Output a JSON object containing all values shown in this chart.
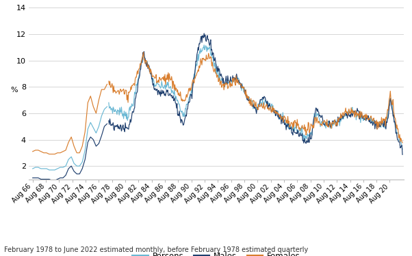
{
  "title": "",
  "ylabel": "%",
  "footnote": "February 1978 to June 2022 estimated monthly, before February 1978 estimated quarterly",
  "legend_labels": [
    "Persons",
    "Males",
    "Females"
  ],
  "colors": {
    "persons": "#6bb8d4",
    "males": "#1f3f6e",
    "females": "#d97e2e"
  },
  "ylim": [
    1.0,
    14.0
  ],
  "yticks": [
    2,
    4,
    6,
    8,
    10,
    12,
    14
  ],
  "grid_color": "#d0d0d0",
  "background_color": "#ffffff",
  "line_width": 0.85,
  "quarterly_dates": [
    1966.58,
    1967.0,
    1967.42,
    1967.83,
    1968.25,
    1968.67,
    1969.08,
    1969.5,
    1969.92,
    1970.33,
    1970.75,
    1971.17,
    1971.58,
    1972.0,
    1972.42,
    1972.83,
    1973.25,
    1973.67,
    1974.08,
    1974.5,
    1974.92,
    1975.33,
    1975.75,
    1976.17,
    1976.58,
    1977.0,
    1977.42,
    1977.83
  ],
  "quarterly_persons": [
    1.8,
    1.9,
    1.9,
    1.8,
    1.8,
    1.8,
    1.7,
    1.7,
    1.7,
    1.8,
    1.9,
    1.9,
    2.0,
    2.5,
    2.7,
    2.2,
    2.0,
    2.0,
    2.3,
    3.2,
    4.8,
    5.3,
    4.9,
    4.5,
    5.0,
    5.8,
    6.3,
    6.5
  ],
  "quarterly_males": [
    1.1,
    1.1,
    1.1,
    1.0,
    1.0,
    1.0,
    1.0,
    0.9,
    0.9,
    1.0,
    1.1,
    1.1,
    1.3,
    1.8,
    2.0,
    1.6,
    1.4,
    1.4,
    1.8,
    2.5,
    3.8,
    4.2,
    4.0,
    3.5,
    3.7,
    4.3,
    5.0,
    5.2
  ],
  "quarterly_females": [
    3.1,
    3.2,
    3.2,
    3.1,
    3.0,
    3.0,
    2.9,
    2.9,
    2.9,
    3.0,
    3.0,
    3.1,
    3.2,
    3.8,
    4.2,
    3.5,
    3.0,
    3.0,
    3.5,
    4.6,
    6.8,
    7.3,
    6.5,
    6.0,
    7.0,
    7.8,
    7.8,
    8.2
  ],
  "xtick_positions": [
    1966.58,
    1968.58,
    1970.58,
    1972.58,
    1974.58,
    1976.58,
    1978.58,
    1980.58,
    1982.58,
    1984.58,
    1986.58,
    1988.58,
    1990.58,
    1992.58,
    1994.58,
    1996.58,
    1998.58,
    2000.58,
    2002.58,
    2004.58,
    2006.58,
    2008.58,
    2010.58,
    2012.58,
    2014.58,
    2016.58,
    2018.58,
    2020.58
  ],
  "xtick_labels": [
    "Aug 66",
    "Aug 68",
    "Aug 70",
    "Aug 72",
    "Aug 74",
    "Aug 76",
    "Aug 78",
    "Aug 80",
    "Aug 82",
    "Aug 84",
    "Aug 86",
    "Aug 88",
    "Aug 90",
    "Aug 92",
    "Aug 94",
    "Aug 96",
    "Aug 98",
    "Aug 00",
    "Aug 02",
    "Aug 04",
    "Aug 06",
    "Aug 08",
    "Aug 10",
    "Aug 12",
    "Aug 14",
    "Aug 16",
    "Aug 18",
    "Aug 20"
  ],
  "monthly_key_points": {
    "t": [
      1978.08,
      1979.0,
      1980.0,
      1981.0,
      1982.0,
      1982.5,
      1983.25,
      1983.75,
      1984.5,
      1985.0,
      1986.0,
      1987.0,
      1988.0,
      1989.0,
      1989.5,
      1990.0,
      1990.75,
      1991.5,
      1992.0,
      1992.5,
      1993.0,
      1993.5,
      1994.0,
      1994.75,
      1995.5,
      1996.5,
      1997.5,
      1998.5,
      1999.5,
      2000.5,
      2001.0,
      2001.5,
      2002.5,
      2003.5,
      2004.5,
      2005.5,
      2006.5,
      2007.0,
      2007.5,
      2008.0,
      2008.75,
      2009.25,
      2009.75,
      2010.5,
      2011.5,
      2012.5,
      2013.5,
      2014.5,
      2015.5,
      2016.5,
      2017.5,
      2018.5,
      2019.5,
      2020.0,
      2020.42,
      2020.67,
      2021.0,
      2021.5,
      2022.0,
      2022.5
    ],
    "persons": [
      6.5,
      6.2,
      6.1,
      5.8,
      7.2,
      8.5,
      10.4,
      9.9,
      8.9,
      8.2,
      8.0,
      8.1,
      7.5,
      6.2,
      6.0,
      6.9,
      8.0,
      10.0,
      10.8,
      11.0,
      10.9,
      10.8,
      9.7,
      8.9,
      8.2,
      8.4,
      8.6,
      7.8,
      6.9,
      6.3,
      6.8,
      7.0,
      6.5,
      6.0,
      5.5,
      5.0,
      4.9,
      4.6,
      4.4,
      4.2,
      4.5,
      5.9,
      5.8,
      5.2,
      5.1,
      5.3,
      5.8,
      6.1,
      6.0,
      5.7,
      5.6,
      5.2,
      5.2,
      5.2,
      6.3,
      7.5,
      6.4,
      4.9,
      4.0,
      3.5
    ],
    "males": [
      5.4,
      5.0,
      5.0,
      4.7,
      6.5,
      8.0,
      10.5,
      10.0,
      8.8,
      7.8,
      7.5,
      7.6,
      7.0,
      5.5,
      5.3,
      6.5,
      7.8,
      10.8,
      11.6,
      11.8,
      11.5,
      11.3,
      10.2,
      9.2,
      8.4,
      8.5,
      8.7,
      7.8,
      6.8,
      6.2,
      7.0,
      7.2,
      6.5,
      5.9,
      5.3,
      4.8,
      4.6,
      4.3,
      4.1,
      3.8,
      4.2,
      6.1,
      6.2,
      5.3,
      5.1,
      5.3,
      5.7,
      5.9,
      6.0,
      5.7,
      5.5,
      5.1,
      5.0,
      5.0,
      6.1,
      7.3,
      6.3,
      4.7,
      3.7,
      3.3
    ],
    "females": [
      8.2,
      7.9,
      7.6,
      7.4,
      8.3,
      9.2,
      10.3,
      9.8,
      9.0,
      8.7,
      8.6,
      8.8,
      8.1,
      7.2,
      6.9,
      7.4,
      8.3,
      9.0,
      9.8,
      10.0,
      10.2,
      10.2,
      9.2,
      8.6,
      8.0,
      8.3,
      8.5,
      7.8,
      6.9,
      6.5,
      6.4,
      6.6,
      6.4,
      6.1,
      5.7,
      5.2,
      5.1,
      4.9,
      4.8,
      4.7,
      4.9,
      5.6,
      5.3,
      5.1,
      5.1,
      5.3,
      5.9,
      6.2,
      6.1,
      5.8,
      5.7,
      5.3,
      5.3,
      5.4,
      6.6,
      7.6,
      6.6,
      5.2,
      4.4,
      3.7
    ]
  }
}
